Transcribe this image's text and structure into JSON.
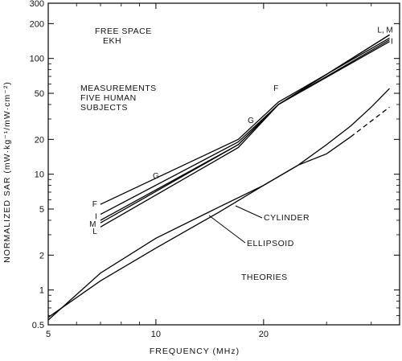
{
  "chart_data": {
    "type": "line",
    "xscale": "log",
    "yscale": "log",
    "xlim": [
      5,
      48
    ],
    "ylim": [
      0.5,
      300
    ],
    "xlabel": "FREQUENCY (MHz)",
    "ylabel": "NORMALIZED SAR (mW·kg⁻¹/mW·cm⁻²)",
    "xticks": [
      5,
      10,
      20
    ],
    "yticks": [
      0.5,
      1,
      2,
      5,
      10,
      20,
      50,
      100,
      200,
      300
    ],
    "grid": false,
    "annotations": {
      "free_space_1": "FREE SPACE",
      "free_space_2": "EKH",
      "measurements_1": "MEASUREMENTS",
      "measurements_2": "FIVE HUMAN",
      "measurements_3": "SUBJECTS",
      "theories": "THEORIES",
      "cylinder": "CYLINDER",
      "ellipsoid": "ELLIPSOID"
    },
    "series": [
      {
        "name": "F",
        "style": "solid",
        "x": [
          7,
          17,
          22,
          45
        ],
        "y": [
          5.5,
          20,
          42,
          150
        ]
      },
      {
        "name": "G",
        "style": "solid",
        "x": [
          7,
          17,
          22,
          45
        ],
        "y": [
          4.5,
          19,
          40,
          145
        ]
      },
      {
        "name": "I",
        "style": "solid",
        "x": [
          7,
          17,
          22,
          45
        ],
        "y": [
          4.0,
          18,
          40,
          140
        ]
      },
      {
        "name": "M",
        "style": "solid",
        "x": [
          7,
          17,
          22,
          45
        ],
        "y": [
          3.8,
          18,
          40,
          160
        ]
      },
      {
        "name": "L",
        "style": "solid",
        "x": [
          7,
          17,
          22,
          45
        ],
        "y": [
          3.5,
          17,
          40,
          160
        ]
      },
      {
        "name": "CYLINDER",
        "style": "solid",
        "x": [
          5,
          7,
          10,
          15,
          20,
          25,
          30,
          35,
          40,
          45
        ],
        "y": [
          0.58,
          1.2,
          2.3,
          4.7,
          8.0,
          12.0,
          18,
          26,
          38,
          55
        ]
      },
      {
        "name": "CYLINDER (dashed)",
        "style": "dashed",
        "x": [
          35,
          45
        ],
        "y": [
          21,
          38
        ]
      },
      {
        "name": "ELLIPSOID",
        "style": "solid",
        "x": [
          5,
          7,
          10,
          15,
          20,
          25,
          30,
          35
        ],
        "y": [
          0.55,
          1.4,
          2.8,
          5.2,
          8.0,
          12.0,
          15,
          21
        ]
      }
    ],
    "point_labels": [
      {
        "text": "F",
        "x": 6.85,
        "y": 5.5
      },
      {
        "text": "I",
        "x": 6.85,
        "y": 4.3
      },
      {
        "text": "M",
        "x": 6.8,
        "y": 3.7
      },
      {
        "text": "L",
        "x": 6.85,
        "y": 3.2
      },
      {
        "text": "G",
        "x": 10.2,
        "y": 9.6
      },
      {
        "text": "G",
        "x": 18.8,
        "y": 29
      },
      {
        "text": "F",
        "x": 22.0,
        "y": 55
      },
      {
        "text": "L, M",
        "x": 46,
        "y": 175
      },
      {
        "text": "I",
        "x": 46,
        "y": 140
      }
    ]
  }
}
